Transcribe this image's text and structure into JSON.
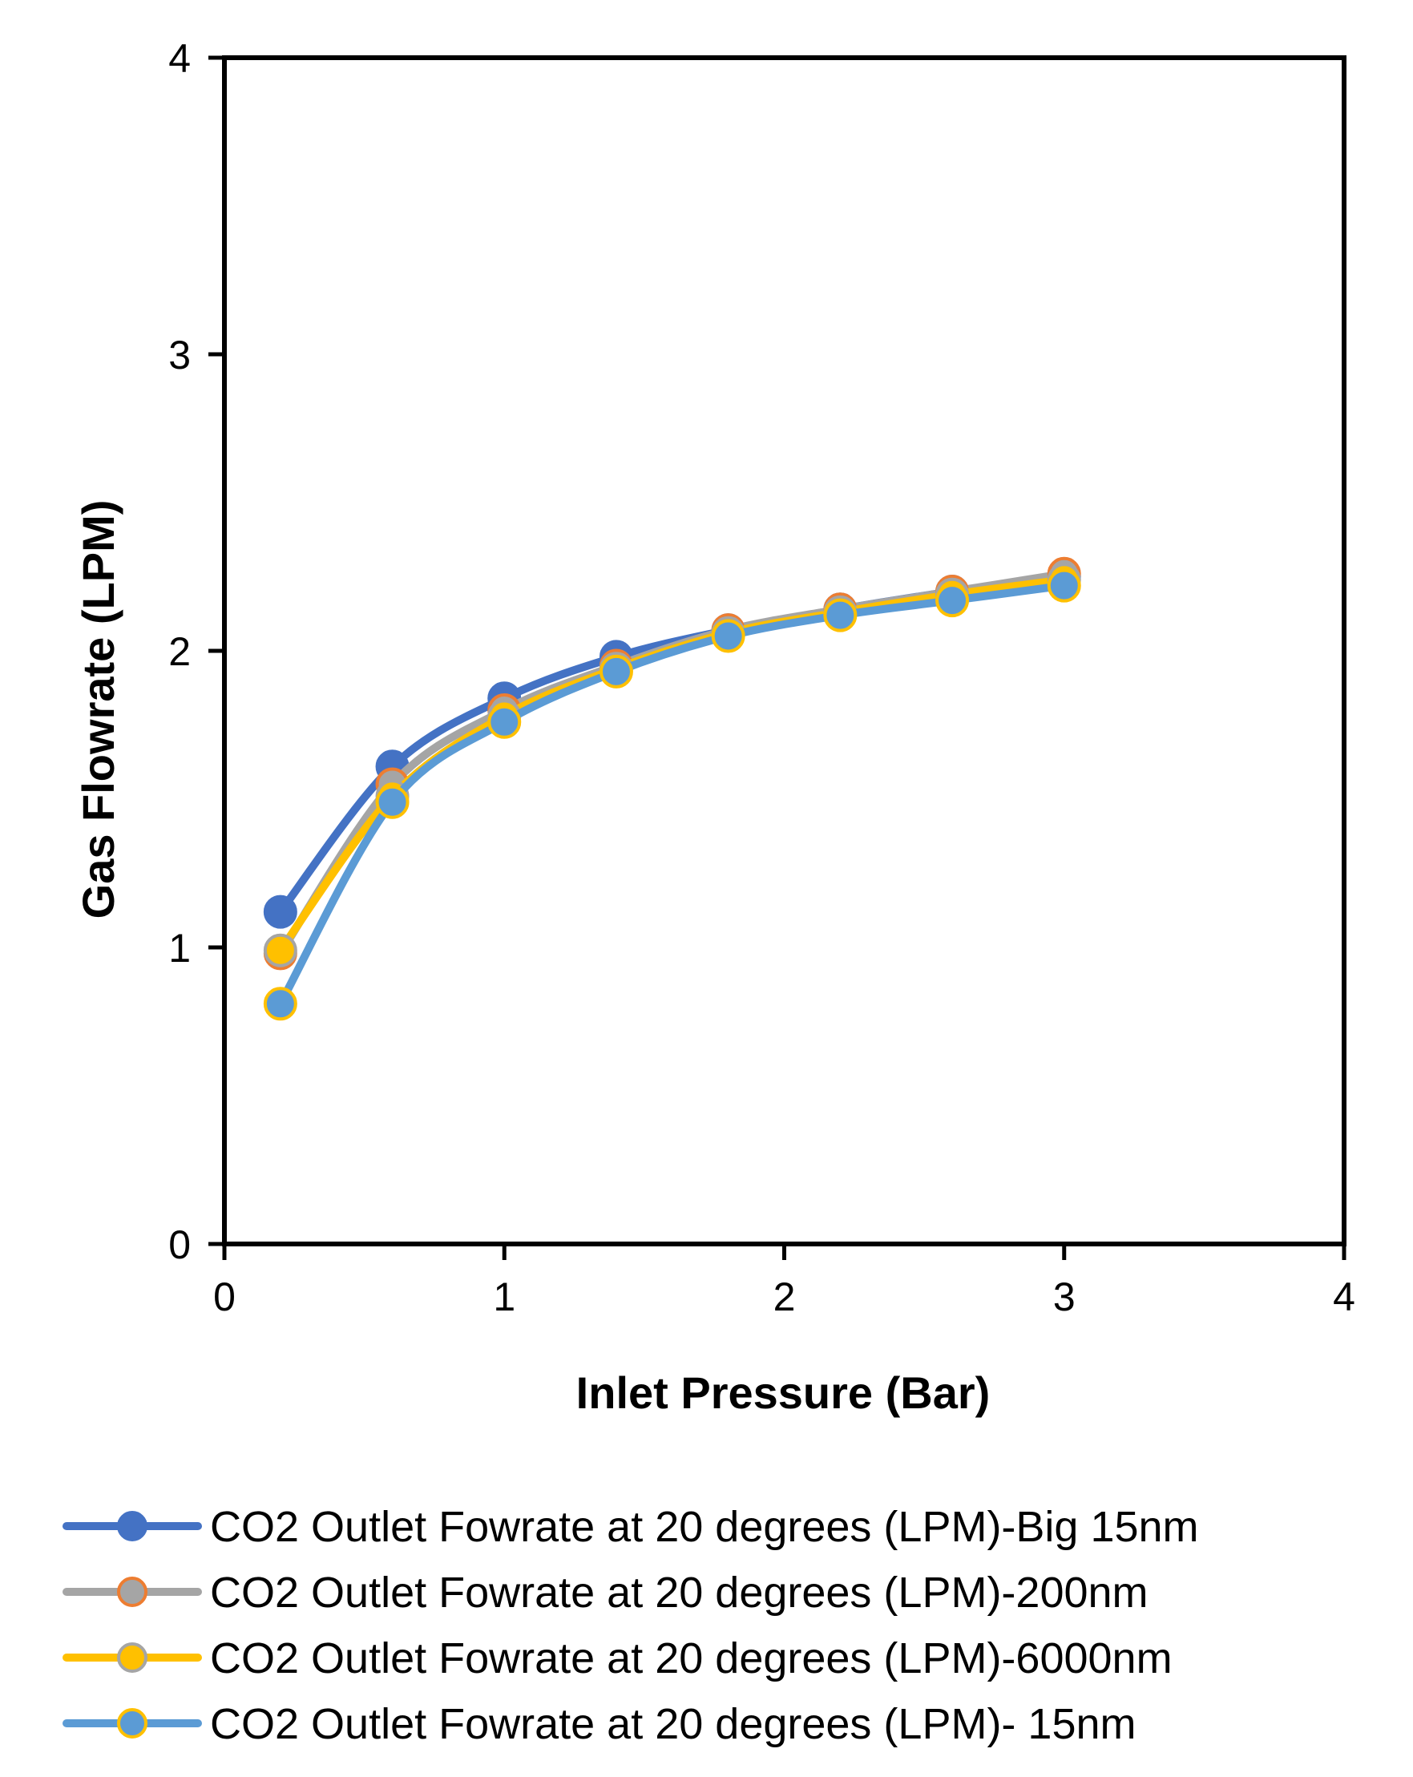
{
  "chart_data": {
    "type": "line",
    "title": "",
    "xlabel": "Inlet Pressure (Bar)",
    "ylabel": "Gas Flowrate (LPM)",
    "xlim": [
      0,
      4
    ],
    "ylim": [
      0,
      4
    ],
    "xticks": [
      0,
      1,
      2,
      3,
      4
    ],
    "yticks": [
      0,
      1,
      2,
      3,
      4
    ],
    "grid": false,
    "legend_position": "bottom",
    "x": [
      0.2,
      0.6,
      1.0,
      1.4,
      1.8,
      2.2,
      2.6,
      3.0
    ],
    "series": [
      {
        "name": "CO2 Outlet Fowrate at 20 degrees (LPM)-Big 15nm",
        "values": [
          1.12,
          1.61,
          1.84,
          1.98,
          2.07,
          2.14,
          2.2,
          2.25
        ],
        "line_color": "#4472C4",
        "marker_fill": "#4472C4",
        "marker_edge": "#4472C4"
      },
      {
        "name": "CO2 Outlet Fowrate at 20 degrees (LPM)-200nm",
        "values": [
          0.98,
          1.55,
          1.8,
          1.95,
          2.07,
          2.14,
          2.2,
          2.26
        ],
        "line_color": "#A5A5A5",
        "marker_fill": "#A5A5A5",
        "marker_edge": "#ED7D31"
      },
      {
        "name": "CO2 Outlet Fowrate at 20 degrees (LPM)-6000nm",
        "values": [
          0.99,
          1.51,
          1.78,
          1.94,
          2.06,
          2.13,
          2.19,
          2.24
        ],
        "line_color": "#FFC000",
        "marker_fill": "#FFC000",
        "marker_edge": "#A5A5A5"
      },
      {
        "name": "CO2 Outlet Fowrate at 20 degrees (LPM)- 15nm",
        "values": [
          0.81,
          1.49,
          1.76,
          1.93,
          2.05,
          2.12,
          2.17,
          2.22
        ],
        "line_color": "#5B9BD5",
        "marker_fill": "#5B9BD5",
        "marker_edge": "#FFC000"
      }
    ]
  }
}
